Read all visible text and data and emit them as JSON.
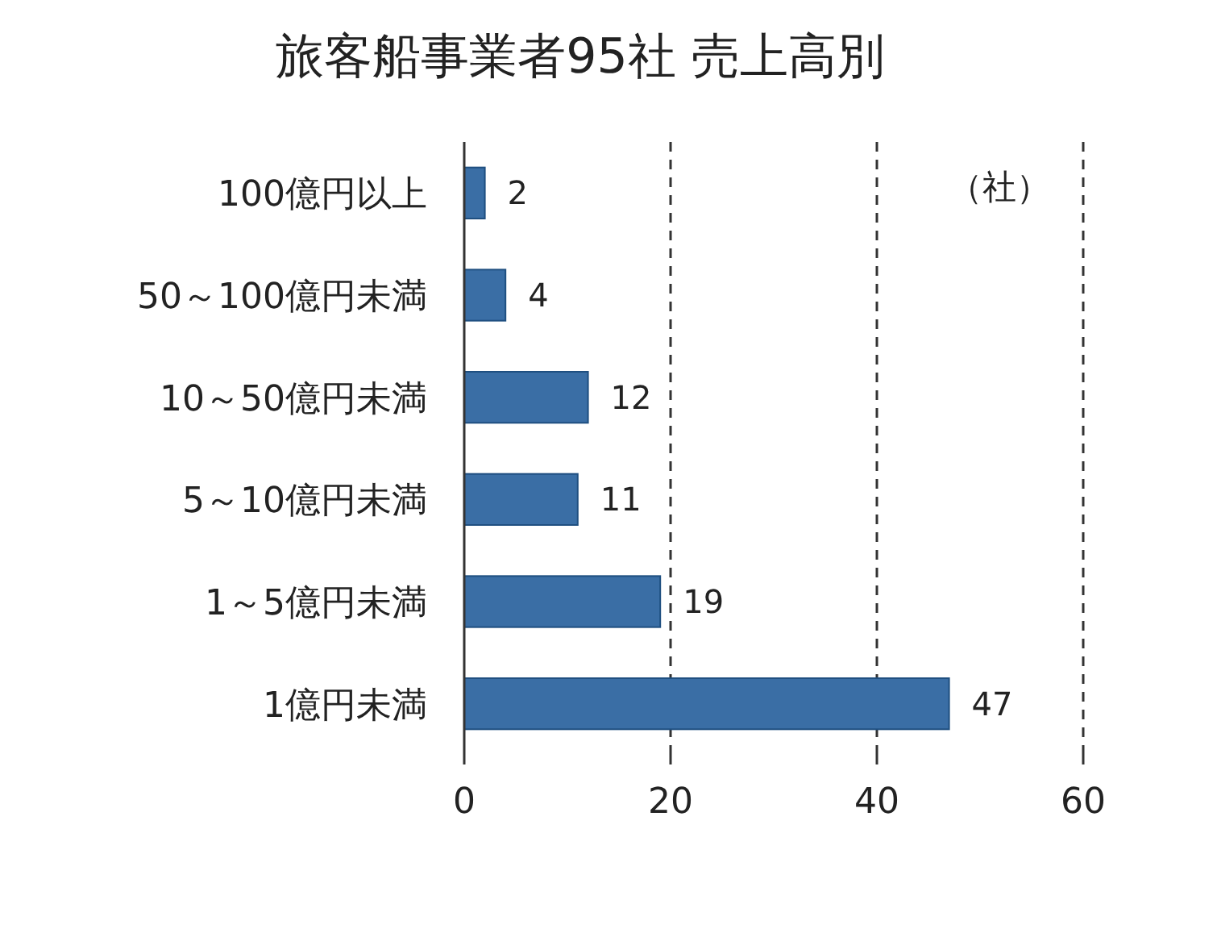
{
  "chart_data": {
    "type": "bar",
    "orientation": "horizontal",
    "title": "旅客船事業者95社 売上高別",
    "categories": [
      "100億円以上",
      "50～100億円未満",
      "10～50億円未満",
      "5～10億円未満",
      "1～5億円未満",
      "1億円未満"
    ],
    "values": [
      2,
      4,
      12,
      11,
      19,
      47
    ],
    "color": "#3a6ea5",
    "xlim": [
      0,
      60
    ],
    "xticks": [
      0,
      20,
      40,
      60
    ],
    "grid": "x",
    "data_labels": true,
    "annotations": [
      "（社）"
    ]
  }
}
